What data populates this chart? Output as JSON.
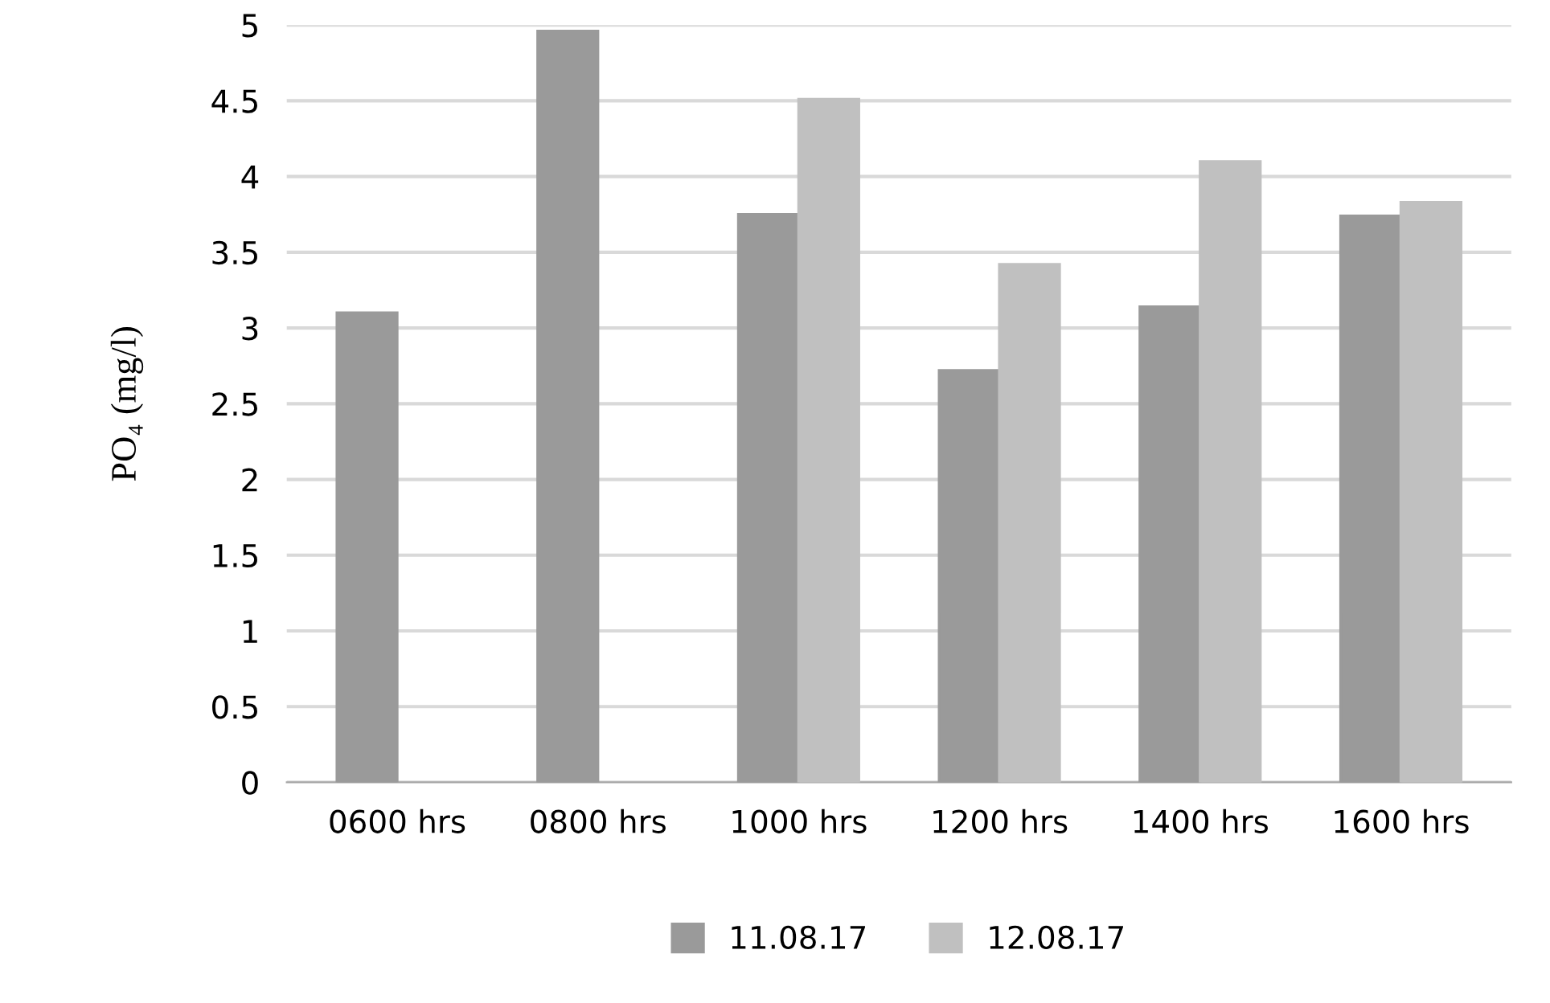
{
  "chart_data": {
    "type": "bar",
    "ylabel": "PO₄ (mg/l)",
    "categories": [
      "0600 hrs",
      "0800 hrs",
      "1000 hrs",
      "1200 hrs",
      "1400 hrs",
      "1600 hrs"
    ],
    "series": [
      {
        "name": "11.08.17",
        "color": "#9a9a9a",
        "values": [
          3.1,
          4.96,
          3.75,
          2.72,
          3.14,
          3.74
        ]
      },
      {
        "name": "12.08.17",
        "color": "#c0c0c0",
        "values": [
          null,
          null,
          4.51,
          3.42,
          4.1,
          3.83
        ]
      }
    ],
    "ylim": [
      0,
      5
    ],
    "yticks": [
      0,
      0.5,
      1,
      1.5,
      2,
      2.5,
      3,
      3.5,
      4,
      4.5,
      5
    ],
    "grid": "y",
    "legend": "bottom"
  }
}
